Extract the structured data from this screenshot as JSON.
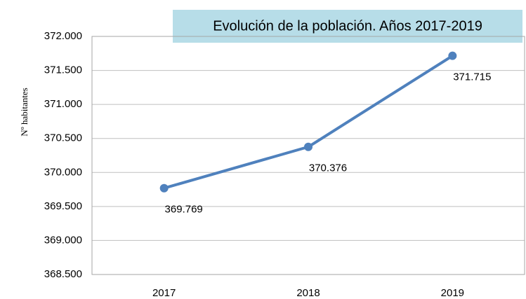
{
  "chart_data": {
    "type": "line",
    "title": "Evolución de la población. Años 2017-2019",
    "y_label": "Nº habitantes",
    "categories": [
      "2017",
      "2018",
      "2019"
    ],
    "series": [
      {
        "name": "Nº habitantes",
        "color": "#4f81bd",
        "values": [
          369769,
          370376,
          371715
        ],
        "value_labels": [
          "369.769",
          "370.376",
          "371.715"
        ]
      }
    ],
    "ylim": [
      368500,
      372000
    ],
    "yticks": [
      {
        "value": 368500,
        "label": "368.500"
      },
      {
        "value": 369000,
        "label": "369.000"
      },
      {
        "value": 369500,
        "label": "369.500"
      },
      {
        "value": 370000,
        "label": "370.000"
      },
      {
        "value": 370500,
        "label": "370.500"
      },
      {
        "value": 371000,
        "label": "371.000"
      },
      {
        "value": 371500,
        "label": "371.500"
      },
      {
        "value": 372000,
        "label": "372.000"
      }
    ],
    "grid": true
  }
}
